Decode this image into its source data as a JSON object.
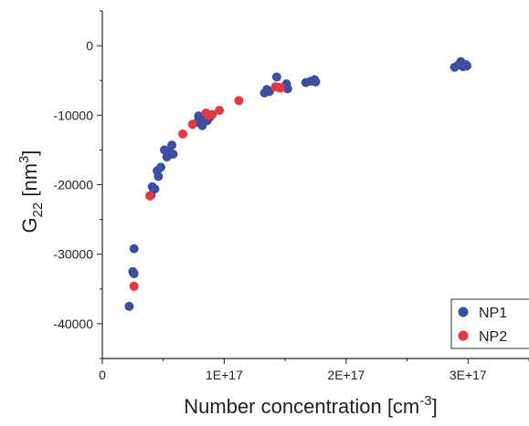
{
  "chart_data": {
    "type": "scatter",
    "xlabel": {
      "main": "Number concentration [cm",
      "sup": "-3",
      "tail": "]"
    },
    "ylabel": {
      "main": "G",
      "sub": "22",
      "mid": " [nm",
      "sup": "3",
      "tail": "]"
    },
    "xlim": [
      0,
      3.5e+17
    ],
    "ylim": [
      -45000,
      5000
    ],
    "x_ticks": [
      {
        "value": 0,
        "label": "0"
      },
      {
        "value": 1e+17,
        "label": "1E+17"
      },
      {
        "value": 2e+17,
        "label": "2E+17"
      },
      {
        "value": 3e+17,
        "label": "3E+17"
      }
    ],
    "y_ticks": [
      {
        "value": 0,
        "label": "0"
      },
      {
        "value": -10000,
        "label": "-10000"
      },
      {
        "value": -20000,
        "label": "-20000"
      },
      {
        "value": -30000,
        "label": "-30000"
      },
      {
        "value": -40000,
        "label": "-40000"
      }
    ],
    "legend_position": "bottom-right",
    "series": [
      {
        "name": "NP1",
        "color": "#3a4fa3",
        "points": [
          [
            2.2e+16,
            -37500
          ],
          [
            2.5e+16,
            -32500
          ],
          [
            2.6e+16,
            -32800
          ],
          [
            2.6e+16,
            -29200
          ],
          [
            4e+16,
            -21500
          ],
          [
            4.1e+16,
            -20300
          ],
          [
            4.3e+16,
            -20600
          ],
          [
            4.5e+16,
            -18000
          ],
          [
            4.6e+16,
            -18800
          ],
          [
            4.8e+16,
            -17500
          ],
          [
            5.1e+16,
            -15000
          ],
          [
            5.3e+16,
            -16000
          ],
          [
            5.5e+16,
            -15300
          ],
          [
            5.7e+16,
            -14300
          ],
          [
            5.8e+16,
            -15600
          ],
          [
            7.8e+16,
            -11000
          ],
          [
            7.9e+16,
            -10100
          ],
          [
            8e+16,
            -10500
          ],
          [
            8.2e+16,
            -11500
          ],
          [
            8.3e+16,
            -10200
          ],
          [
            8.6e+16,
            -10800
          ],
          [
            8.8e+16,
            -10300
          ],
          [
            1.33e+17,
            -6800
          ],
          [
            1.35e+17,
            -6300
          ],
          [
            1.37e+17,
            -6600
          ],
          [
            1.43e+17,
            -4500
          ],
          [
            1.45e+17,
            -6000
          ],
          [
            1.51e+17,
            -5500
          ],
          [
            1.52e+17,
            -6200
          ],
          [
            1.67e+17,
            -5300
          ],
          [
            1.71e+17,
            -5100
          ],
          [
            1.74e+17,
            -4900
          ],
          [
            1.75e+17,
            -5200
          ],
          [
            2.89e+17,
            -3100
          ],
          [
            2.92e+17,
            -2800
          ],
          [
            2.94e+17,
            -2300
          ],
          [
            2.96e+17,
            -3000
          ],
          [
            2.98e+17,
            -2700
          ],
          [
            2.99e+17,
            -2900
          ]
        ]
      },
      {
        "name": "NP2",
        "color": "#e8373f",
        "points": [
          [
            2.6e+16,
            -34600
          ],
          [
            3.9e+16,
            -21600
          ],
          [
            6.6e+16,
            -12700
          ],
          [
            7.4e+16,
            -11300
          ],
          [
            8.5e+16,
            -9700
          ],
          [
            8.7e+16,
            -10000
          ],
          [
            9e+16,
            -9900
          ],
          [
            9.6e+16,
            -9300
          ],
          [
            1.12e+17,
            -7900
          ],
          [
            1.42e+17,
            -5900
          ],
          [
            1.46e+17,
            -6100
          ]
        ]
      }
    ]
  }
}
